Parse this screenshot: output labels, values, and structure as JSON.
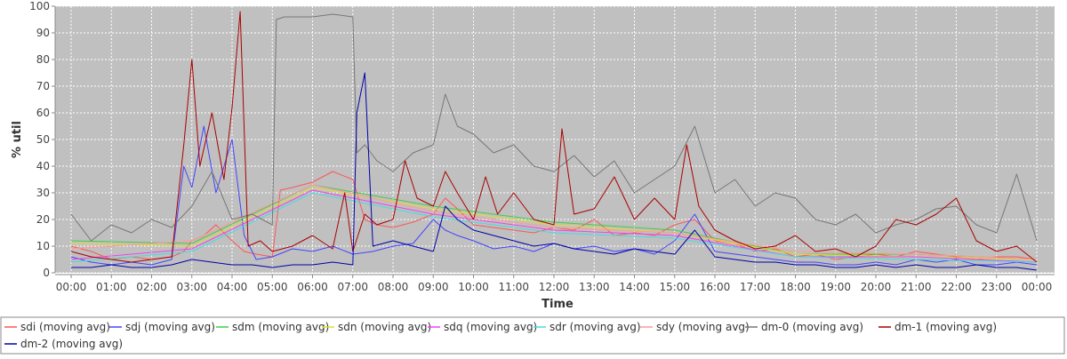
{
  "chart_data": {
    "type": "line",
    "xlabel": "Time",
    "ylabel": "% util",
    "ylim": [
      0,
      100
    ],
    "xlim_hours": [
      0,
      24
    ],
    "x_ticks": [
      "00:00",
      "01:00",
      "02:00",
      "03:00",
      "04:00",
      "05:00",
      "06:00",
      "07:00",
      "08:00",
      "09:00",
      "10:00",
      "11:00",
      "12:00",
      "13:00",
      "14:00",
      "15:00",
      "16:00",
      "17:00",
      "18:00",
      "19:00",
      "20:00",
      "21:00",
      "22:00",
      "23:00",
      "00:00"
    ],
    "y_ticks": [
      0,
      10,
      20,
      30,
      40,
      50,
      60,
      70,
      80,
      90,
      100
    ],
    "grid": true,
    "plot_background": "#c0c0c0",
    "legend_position": "bottom",
    "series": [
      {
        "name": "sdi (moving avg)",
        "color": "#ff5555",
        "hours": [
          0,
          0.5,
          1,
          1.5,
          2,
          2.5,
          2.8,
          3,
          3.3,
          3.6,
          4,
          4.3,
          4.6,
          5,
          5.2,
          5.5,
          6,
          6.5,
          7,
          7.3,
          7.6,
          8,
          8.5,
          9,
          9.3,
          9.6,
          10,
          10.5,
          11,
          11.5,
          12,
          12.5,
          13,
          13.5,
          14,
          14.5,
          15,
          15.5,
          16,
          16.5,
          17,
          17.5,
          18,
          18.5,
          19,
          19.5,
          20,
          20.5,
          21,
          21.5,
          22,
          22.5,
          23,
          23.5,
          24
        ],
        "values": [
          10,
          8,
          5,
          6,
          5,
          6,
          8,
          12,
          14,
          18,
          12,
          8,
          7,
          6,
          31,
          32,
          34,
          38,
          35,
          20,
          18,
          17,
          19,
          22,
          28,
          24,
          18,
          17,
          16,
          15,
          17,
          16,
          20,
          14,
          15,
          14,
          18,
          20,
          12,
          11,
          8,
          9,
          6,
          7,
          5,
          6,
          7,
          6,
          8,
          7,
          6,
          5,
          6,
          6,
          5
        ]
      },
      {
        "name": "sdj (moving avg)",
        "color": "#4444ff",
        "hours": [
          0,
          0.5,
          1,
          1.5,
          2,
          2.5,
          2.8,
          3,
          3.3,
          3.6,
          4,
          4.3,
          4.6,
          5,
          5.5,
          6,
          6.5,
          7,
          7.5,
          8,
          8.5,
          9,
          9.3,
          9.6,
          10,
          10.5,
          11,
          11.5,
          12,
          12.5,
          13,
          13.5,
          14,
          14.5,
          15,
          15.5,
          16,
          16.5,
          17,
          17.5,
          18,
          18.5,
          19,
          19.5,
          20,
          20.5,
          21,
          21.5,
          22,
          22.5,
          23,
          23.5,
          24
        ],
        "values": [
          6,
          4,
          3,
          4,
          3,
          5,
          40,
          32,
          55,
          30,
          50,
          14,
          5,
          6,
          9,
          8,
          10,
          7,
          8,
          10,
          11,
          20,
          16,
          14,
          12,
          9,
          10,
          8,
          11,
          9,
          10,
          8,
          9,
          7,
          12,
          22,
          8,
          7,
          6,
          5,
          4,
          4,
          3,
          3,
          4,
          3,
          5,
          4,
          5,
          3,
          3,
          4,
          3
        ]
      },
      {
        "name": "sdm (moving avg)",
        "color": "#44cc44",
        "hours": [
          0,
          3,
          6,
          9,
          12,
          15,
          18,
          21,
          24
        ],
        "values": [
          12,
          11,
          33,
          25,
          19,
          16,
          7,
          7,
          5
        ]
      },
      {
        "name": "sdn (moving avg)",
        "color": "#dddd33",
        "hours": [
          0,
          3,
          6,
          9,
          12,
          15,
          18,
          21,
          24
        ],
        "values": [
          11,
          10,
          32,
          24,
          18,
          15,
          7,
          6,
          5
        ]
      },
      {
        "name": "sdq (moving avg)",
        "color": "#ee44ee",
        "hours": [
          0,
          3,
          6,
          9,
          12,
          15,
          18,
          21,
          24
        ],
        "values": [
          5,
          9,
          31,
          22,
          16,
          14,
          6,
          6,
          4
        ]
      },
      {
        "name": "sdr (moving avg)",
        "color": "#44dddd",
        "hours": [
          0,
          3,
          6,
          9,
          12,
          15,
          18,
          21,
          24
        ],
        "values": [
          4,
          8,
          30,
          21,
          15,
          13,
          6,
          5,
          4
        ]
      },
      {
        "name": "sdy (moving avg)",
        "color": "#ff9999",
        "hours": [
          0,
          3,
          6,
          9,
          12,
          15,
          18,
          21,
          24
        ],
        "values": [
          9,
          12,
          33,
          23,
          17,
          15,
          8,
          7,
          5
        ]
      },
      {
        "name": "dm-0 (moving avg)",
        "color": "#777777",
        "hours": [
          0,
          0.5,
          1,
          1.5,
          2,
          2.5,
          3,
          3.5,
          4,
          4.5,
          5,
          5.1,
          5.3,
          6,
          6.5,
          7,
          7.1,
          7.3,
          7.6,
          8,
          8.5,
          9,
          9.3,
          9.6,
          10,
          10.5,
          11,
          11.5,
          12,
          12.5,
          13,
          13.5,
          14,
          14.5,
          15,
          15.5,
          16,
          16.5,
          17,
          17.5,
          18,
          18.5,
          19,
          19.5,
          20,
          20.5,
          21,
          21.5,
          22,
          22.5,
          23,
          23.5,
          24
        ],
        "values": [
          22,
          12,
          18,
          15,
          20,
          17,
          25,
          38,
          20,
          22,
          18,
          95,
          96,
          96,
          97,
          96,
          45,
          48,
          42,
          38,
          45,
          48,
          67,
          55,
          52,
          45,
          48,
          40,
          38,
          44,
          36,
          42,
          30,
          35,
          40,
          55,
          30,
          35,
          25,
          30,
          28,
          20,
          18,
          22,
          15,
          18,
          20,
          24,
          25,
          18,
          15,
          37,
          12
        ]
      },
      {
        "name": "dm-1 (moving avg)",
        "color": "#aa0000",
        "hours": [
          0,
          0.5,
          1,
          1.5,
          2,
          2.5,
          2.8,
          3,
          3.2,
          3.5,
          3.8,
          4,
          4.2,
          4.4,
          4.7,
          5,
          5.5,
          6,
          6.5,
          6.8,
          7,
          7.3,
          7.6,
          8,
          8.3,
          8.6,
          9,
          9.3,
          9.6,
          10,
          10.3,
          10.6,
          11,
          11.5,
          12,
          12.2,
          12.5,
          13,
          13.5,
          14,
          14.5,
          15,
          15.3,
          15.6,
          16,
          16.5,
          17,
          17.5,
          18,
          18.5,
          19,
          19.5,
          20,
          20.5,
          21,
          21.5,
          22,
          22.5,
          23,
          23.5,
          24
        ],
        "values": [
          8,
          6,
          5,
          4,
          5,
          6,
          48,
          80,
          40,
          60,
          35,
          62,
          98,
          10,
          12,
          8,
          10,
          14,
          9,
          30,
          8,
          22,
          18,
          20,
          42,
          28,
          25,
          38,
          30,
          20,
          36,
          22,
          30,
          20,
          18,
          54,
          22,
          24,
          36,
          20,
          28,
          20,
          48,
          25,
          16,
          12,
          9,
          10,
          14,
          8,
          9,
          6,
          10,
          20,
          18,
          22,
          28,
          12,
          8,
          10,
          4
        ]
      },
      {
        "name": "dm-2 (moving avg)",
        "color": "#0000aa",
        "hours": [
          0,
          0.5,
          1,
          1.5,
          2,
          2.5,
          3,
          3.5,
          4,
          4.5,
          5,
          5.5,
          6,
          6.5,
          7,
          7.1,
          7.3,
          7.5,
          8,
          8.5,
          9,
          9.3,
          9.6,
          10,
          10.5,
          11,
          11.5,
          12,
          12.5,
          13,
          13.5,
          14,
          14.5,
          15,
          15.5,
          16,
          16.5,
          17,
          17.5,
          18,
          18.5,
          19,
          19.5,
          20,
          20.5,
          21,
          21.5,
          22,
          22.5,
          23,
          23.5,
          24
        ],
        "values": [
          2,
          2,
          3,
          2,
          2,
          3,
          5,
          4,
          3,
          3,
          2,
          3,
          3,
          4,
          3,
          60,
          75,
          10,
          12,
          10,
          8,
          25,
          20,
          16,
          14,
          12,
          10,
          11,
          9,
          8,
          7,
          9,
          8,
          7,
          16,
          6,
          5,
          4,
          4,
          3,
          3,
          2,
          2,
          3,
          2,
          3,
          2,
          2,
          3,
          2,
          2,
          1
        ]
      }
    ]
  }
}
